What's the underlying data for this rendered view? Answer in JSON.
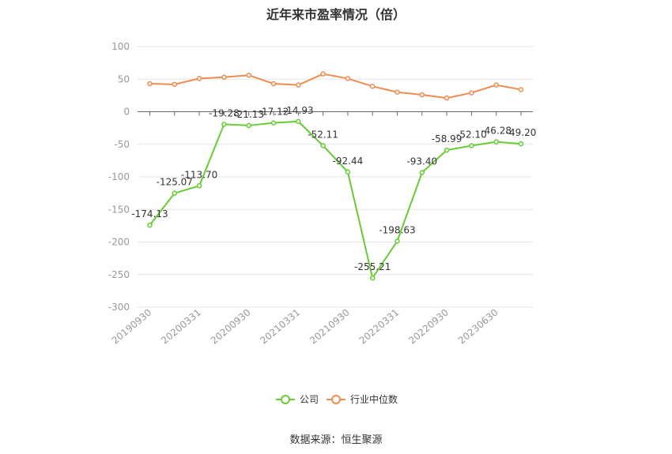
{
  "chart_data": {
    "type": "line",
    "title": "近年来市盈率情况（倍）",
    "source": "数据来源：恒生聚源",
    "ylim": [
      -300,
      100
    ],
    "yticks": [
      100,
      50,
      0,
      -50,
      -100,
      -150,
      -200,
      -250,
      -300
    ],
    "xtick_labels": [
      "20190930",
      "20200331",
      "20200930",
      "20210331",
      "20210930",
      "20220331",
      "20220930",
      "20230630"
    ],
    "xtick_indices": [
      0,
      2,
      4,
      6,
      8,
      10,
      12,
      14
    ],
    "grid": true,
    "legend": "bottom-center",
    "series": [
      {
        "name": "公司",
        "color": "#66cc33",
        "values": [
          -174.13,
          -125.07,
          -113.7,
          -19.28,
          -21.13,
          -17.12,
          -14.93,
          -52.11,
          -92.44,
          -255.21,
          -198.63,
          -93.4,
          -58.99,
          -52.1,
          -46.28,
          -49.2
        ],
        "labels": [
          "-174.13",
          "-125.07",
          "-113.70",
          "-19.28",
          "-21.13",
          "-17.12",
          "-14.93",
          "-52.11",
          "-92.44",
          "-255.21",
          "-198.63",
          "-93.40",
          "-58.99",
          "-52.10",
          "-46.28",
          "-49.20"
        ]
      },
      {
        "name": "行业中位数",
        "color": "#f08c50",
        "values": [
          43,
          42,
          51,
          53,
          56,
          43,
          41,
          58,
          51,
          39,
          30,
          26,
          21,
          29,
          41,
          34
        ]
      }
    ]
  }
}
